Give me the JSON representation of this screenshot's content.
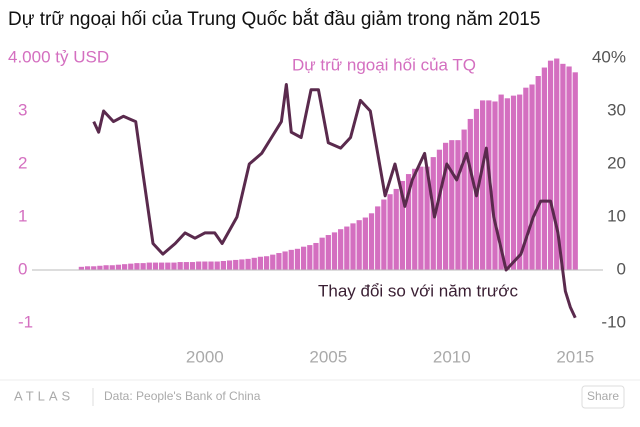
{
  "chart_data": {
    "type": "bar-line",
    "title": "Dự trữ ngoại hối của Trung Quốc bắt đầu giảm trong năm 2015",
    "annotations": [
      "Dự trữ ngoại hối của TQ",
      "Thay đổi so với năm trước"
    ],
    "xlim": [
      1993,
      2015.8
    ],
    "xticks": [
      2000,
      2005,
      2010,
      2015
    ],
    "ylim": [
      -1.2,
      4.2
    ],
    "yticks": [
      -1,
      0,
      1,
      2,
      3,
      {
        "value": 4,
        "label": "4.000 tỷ USD"
      }
    ],
    "y2lim": [
      -12,
      42
    ],
    "y2ticks": [
      -10,
      0,
      10,
      20,
      30,
      {
        "value": 40,
        "label": "40%"
      }
    ],
    "series": [
      {
        "type": "bar",
        "color": "#d46fc0",
        "x": [
          1995,
          1995.25,
          1995.5,
          1995.75,
          1996,
          1996.25,
          1996.5,
          1996.75,
          1997,
          1997.25,
          1997.5,
          1997.75,
          1998,
          1998.25,
          1998.5,
          1998.75,
          1999,
          1999.25,
          1999.5,
          1999.75,
          2000,
          2000.25,
          2000.5,
          2000.75,
          2001,
          2001.25,
          2001.5,
          2001.75,
          2002,
          2002.25,
          2002.5,
          2002.75,
          2003,
          2003.25,
          2003.5,
          2003.75,
          2004,
          2004.25,
          2004.5,
          2004.75,
          2005,
          2005.25,
          2005.5,
          2005.75,
          2006,
          2006.25,
          2006.5,
          2006.75,
          2007,
          2007.25,
          2007.5,
          2007.75,
          2008,
          2008.25,
          2008.5,
          2008.75,
          2009,
          2009.25,
          2009.5,
          2009.75,
          2010,
          2010.25,
          2010.5,
          2010.75,
          2011,
          2011.25,
          2011.5,
          2011.75,
          2012,
          2012.25,
          2012.5,
          2012.75,
          2013,
          2013.25,
          2013.5,
          2013.75,
          2014,
          2014.25,
          2014.5,
          2014.75,
          2015
        ],
        "values": [
          0.06,
          0.07,
          0.07,
          0.08,
          0.09,
          0.09,
          0.1,
          0.11,
          0.12,
          0.13,
          0.13,
          0.14,
          0.14,
          0.14,
          0.14,
          0.14,
          0.15,
          0.15,
          0.15,
          0.16,
          0.16,
          0.16,
          0.16,
          0.17,
          0.18,
          0.19,
          0.2,
          0.21,
          0.23,
          0.25,
          0.26,
          0.29,
          0.32,
          0.35,
          0.38,
          0.4,
          0.44,
          0.47,
          0.51,
          0.61,
          0.66,
          0.71,
          0.77,
          0.82,
          0.88,
          0.94,
          0.99,
          1.07,
          1.2,
          1.33,
          1.43,
          1.53,
          1.68,
          1.81,
          1.91,
          1.95,
          1.95,
          2.13,
          2.27,
          2.4,
          2.45,
          2.45,
          2.65,
          2.85,
          3.04,
          3.2,
          3.2,
          3.18,
          3.31,
          3.24,
          3.29,
          3.31,
          3.44,
          3.5,
          3.66,
          3.82,
          3.95,
          3.99,
          3.89,
          3.84,
          3.73
        ]
      },
      {
        "type": "line",
        "color": "#5a2a4d",
        "axis": "y2",
        "x": [
          1995.5,
          1995.7,
          1995.9,
          1996.3,
          1996.7,
          1997.2,
          1997.5,
          1997.9,
          1998.3,
          1998.8,
          1999.2,
          1999.6,
          2000,
          2000.4,
          2000.7,
          2001.3,
          2001.8,
          2002.3,
          2002.7,
          2003.1,
          2003.3,
          2003.5,
          2003.9,
          2004.3,
          2004.6,
          2005,
          2005.5,
          2005.9,
          2006.3,
          2006.7,
          2007.3,
          2007.7,
          2008.1,
          2008.4,
          2008.9,
          2009.3,
          2009.8,
          2010.2,
          2010.6,
          2011,
          2011.4,
          2011.7,
          2012.2,
          2012.8,
          2013.3,
          2013.6,
          2014,
          2014.3,
          2014.6,
          2014.8,
          2015
        ],
        "values": [
          28,
          26,
          30,
          28,
          29,
          28,
          18,
          5,
          3,
          5,
          7,
          6,
          7,
          7,
          5,
          10,
          20,
          22,
          25,
          28,
          35,
          26,
          25,
          34,
          34,
          24,
          23,
          25,
          32,
          30,
          14,
          20,
          12,
          17,
          22,
          10,
          20,
          17,
          22,
          14,
          23,
          10,
          0,
          3,
          10,
          13,
          13,
          7,
          -4,
          -7,
          -9
        ]
      }
    ]
  },
  "footer": {
    "brand": "ATLAS",
    "source": "Data: People's Bank of China",
    "share": "Share"
  }
}
